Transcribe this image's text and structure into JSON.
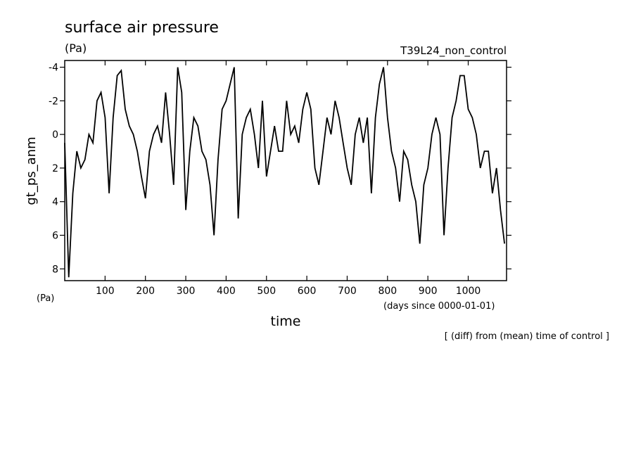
{
  "chart_data": {
    "type": "line",
    "title": "surface air pressure",
    "unit_label": "(Pa)",
    "experiment_label": "T39L24_non_control",
    "y_label": "gt_ps_anm",
    "y_unit_label": "(Pa)",
    "x_label": "time",
    "x_unit_label": "(days since 0000-01-01)",
    "note": "[ (diff) from (mean) time of control ]",
    "xlim": [
      0,
      1095
    ],
    "ylim": [
      8.7,
      -4.4
    ],
    "xticks": [
      100,
      200,
      300,
      400,
      500,
      600,
      700,
      800,
      900,
      1000
    ],
    "yticks": [
      -4,
      -2,
      0,
      2,
      4,
      6,
      8
    ],
    "series": [
      {
        "color": "#000000",
        "x": [
          0,
          10,
          20,
          30,
          40,
          50,
          60,
          70,
          80,
          90,
          100,
          110,
          120,
          130,
          140,
          150,
          160,
          170,
          180,
          190,
          200,
          210,
          220,
          230,
          240,
          250,
          260,
          270,
          280,
          290,
          300,
          310,
          320,
          330,
          340,
          350,
          360,
          370,
          380,
          390,
          400,
          410,
          420,
          430,
          440,
          450,
          460,
          470,
          480,
          490,
          500,
          510,
          520,
          530,
          540,
          550,
          560,
          570,
          580,
          590,
          600,
          610,
          620,
          630,
          640,
          650,
          660,
          670,
          680,
          690,
          700,
          710,
          720,
          730,
          740,
          750,
          760,
          770,
          780,
          790,
          800,
          810,
          820,
          830,
          840,
          850,
          860,
          870,
          880,
          890,
          900,
          910,
          920,
          930,
          940,
          950,
          960,
          970,
          980,
          990,
          1000,
          1010,
          1020,
          1030,
          1040,
          1050,
          1060,
          1070,
          1080,
          1090
        ],
        "values": [
          0.5,
          8.5,
          3.5,
          1,
          2,
          1.5,
          0,
          0.5,
          -2,
          -2.5,
          -1,
          3.5,
          -1,
          -3.5,
          -3.8,
          -1.5,
          -0.5,
          0,
          1,
          2.5,
          3.8,
          1,
          0,
          -0.5,
          0.5,
          -2.5,
          0,
          3,
          -4,
          -2.5,
          4.5,
          1,
          -1,
          -0.5,
          1,
          1.5,
          3,
          6,
          1.5,
          -1.5,
          -2,
          -3,
          -4,
          5,
          0,
          -1,
          -1.5,
          0,
          2,
          -2,
          2.5,
          1,
          -0.5,
          1,
          1,
          -2,
          0,
          -0.5,
          0.5,
          -1.5,
          -2.5,
          -1.5,
          2,
          3,
          1,
          -1,
          0,
          -2,
          -1,
          0.5,
          2,
          3,
          0,
          -1,
          0.5,
          -1,
          3.5,
          -1,
          -3,
          -4,
          -1,
          1,
          2,
          4,
          1,
          1.5,
          3,
          4,
          6.5,
          3,
          2,
          0,
          -1,
          0,
          6,
          2,
          -1,
          -2,
          -3.5,
          -3.5,
          -1.5,
          -1,
          0,
          2,
          1,
          1,
          3.5,
          2,
          4.5,
          6.5
        ]
      }
    ]
  }
}
